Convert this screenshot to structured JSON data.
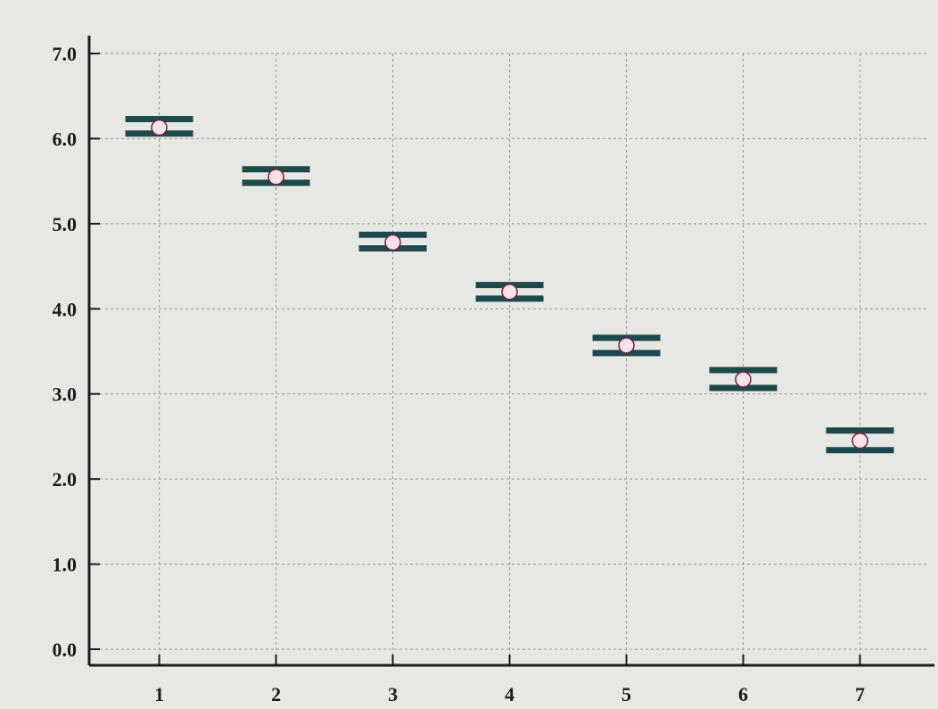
{
  "chart_data": {
    "type": "scatter",
    "title": "",
    "xlabel": "",
    "ylabel": "",
    "x": [
      1,
      2,
      3,
      4,
      5,
      6,
      7
    ],
    "x_ticks": [
      "1",
      "2",
      "3",
      "4",
      "5",
      "6",
      "7"
    ],
    "y_ticks": [
      "0.0",
      "1.0",
      "2.0",
      "3.0",
      "4.0",
      "5.0",
      "6.0",
      "7.0"
    ],
    "ylim": [
      0.0,
      7.0
    ],
    "xlim": [
      0.4,
      7.5
    ],
    "grid": true,
    "series": [
      {
        "values": [
          6.13,
          5.55,
          4.78,
          4.2,
          3.57,
          3.17,
          2.45
        ],
        "error_lower": [
          6.06,
          5.48,
          4.71,
          4.12,
          3.48,
          3.07,
          2.34
        ],
        "error_upper": [
          6.23,
          5.64,
          4.87,
          4.28,
          3.66,
          3.28,
          2.57
        ]
      }
    ],
    "colors": {
      "background": "#e7e7e3",
      "axis": "#1c1c1c",
      "grid": "#9a9a98",
      "error_bar": "#1c4a4a",
      "marker_fill": "#f6e2ea",
      "marker_edge": "#7a1f3b"
    }
  }
}
